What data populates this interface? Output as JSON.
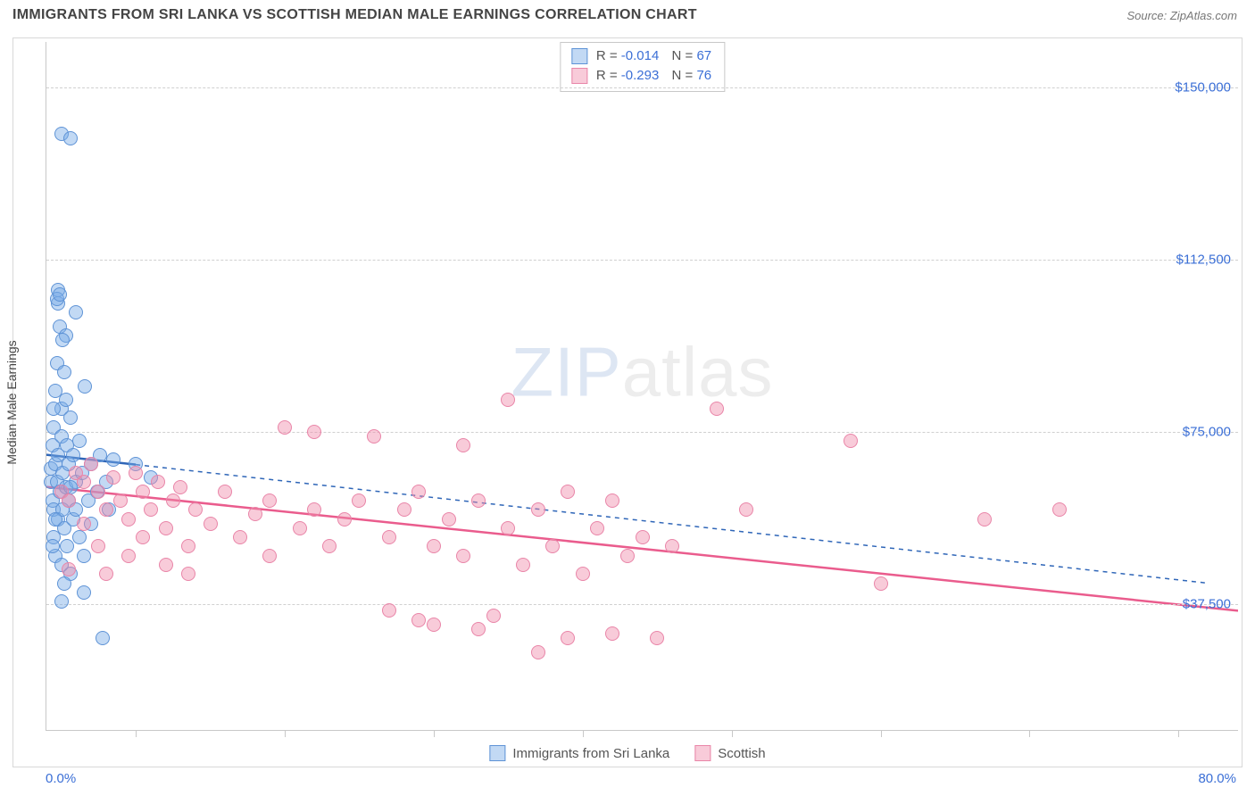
{
  "header": {
    "title": "IMMIGRANTS FROM SRI LANKA VS SCOTTISH MEDIAN MALE EARNINGS CORRELATION CHART",
    "source_prefix": "Source: ",
    "source_name": "ZipAtlas.com"
  },
  "chart": {
    "type": "scatter",
    "ylabel": "Median Male Earnings",
    "xlim": [
      0,
      80
    ],
    "ylim": [
      10000,
      160000
    ],
    "x_axis_start": "0.0%",
    "x_axis_end": "80.0%",
    "y_ticks": [
      {
        "v": 37500,
        "label": "$37,500"
      },
      {
        "v": 75000,
        "label": "$75,000"
      },
      {
        "v": 112500,
        "label": "$112,500"
      },
      {
        "v": 150000,
        "label": "$150,000"
      }
    ],
    "x_tick_positions": [
      6,
      16,
      26,
      36,
      46,
      56,
      66,
      76
    ],
    "grid_color": "#d0d0d0",
    "background_color": "#ffffff",
    "point_radius": 8,
    "watermark": {
      "part1": "ZIP",
      "part2": "atlas"
    },
    "series": [
      {
        "id": "sri_lanka",
        "label": "Immigrants from Sri Lanka",
        "fill": "rgba(120,170,230,0.45)",
        "stroke": "#5e93d6",
        "line_color": "#2f66b8",
        "line_dash": "5,5",
        "R": "-0.014",
        "N": "67",
        "trend": {
          "x1": 0,
          "y1": 70000,
          "x2": 78,
          "y2": 42000,
          "solid_until": 6
        },
        "points": [
          [
            0.3,
            67000
          ],
          [
            0.3,
            64000
          ],
          [
            0.4,
            72000
          ],
          [
            0.4,
            60000
          ],
          [
            0.5,
            58000
          ],
          [
            0.5,
            76000
          ],
          [
            0.5,
            52000
          ],
          [
            0.6,
            84000
          ],
          [
            0.6,
            68000
          ],
          [
            0.6,
            48000
          ],
          [
            0.7,
            90000
          ],
          [
            0.7,
            64000
          ],
          [
            0.8,
            56000
          ],
          [
            0.8,
            70000
          ],
          [
            0.8,
            106000
          ],
          [
            0.8,
            103000
          ],
          [
            0.9,
            62000
          ],
          [
            0.9,
            98000
          ],
          [
            1.0,
            74000
          ],
          [
            1.0,
            46000
          ],
          [
            1.0,
            80000
          ],
          [
            1.1,
            66000
          ],
          [
            1.1,
            58000
          ],
          [
            1.2,
            88000
          ],
          [
            1.2,
            54000
          ],
          [
            1.3,
            96000
          ],
          [
            1.3,
            63000
          ],
          [
            1.4,
            72000
          ],
          [
            1.4,
            50000
          ],
          [
            1.5,
            68000
          ],
          [
            1.5,
            60000
          ],
          [
            1.6,
            44000
          ],
          [
            1.6,
            78000
          ],
          [
            1.8,
            70000
          ],
          [
            1.8,
            56000
          ],
          [
            2.0,
            101000
          ],
          [
            2.0,
            64000
          ],
          [
            2.2,
            52000
          ],
          [
            2.2,
            73000
          ],
          [
            2.4,
            66000
          ],
          [
            2.5,
            40000
          ],
          [
            2.6,
            85000
          ],
          [
            2.8,
            60000
          ],
          [
            3.0,
            68000
          ],
          [
            3.0,
            55000
          ],
          [
            3.4,
            62000
          ],
          [
            3.6,
            70000
          ],
          [
            3.8,
            30000
          ],
          [
            4.0,
            64000
          ],
          [
            4.2,
            58000
          ],
          [
            4.5,
            69000
          ],
          [
            0.7,
            104000
          ],
          [
            0.9,
            105000
          ],
          [
            1.1,
            95000
          ],
          [
            1.3,
            82000
          ],
          [
            1.6,
            63000
          ],
          [
            2.0,
            58000
          ],
          [
            2.5,
            48000
          ],
          [
            0.5,
            80000
          ],
          [
            0.6,
            56000
          ],
          [
            0.4,
            50000
          ],
          [
            1.0,
            38000
          ],
          [
            1.2,
            42000
          ],
          [
            1.0,
            140000
          ],
          [
            1.6,
            139000
          ],
          [
            6.0,
            68000
          ],
          [
            7.0,
            65000
          ]
        ]
      },
      {
        "id": "scottish",
        "label": "Scottish",
        "fill": "rgba(240,140,170,0.45)",
        "stroke": "#e985a8",
        "line_color": "#ea5c8d",
        "line_dash": "",
        "R": "-0.293",
        "N": "76",
        "trend": {
          "x1": 0,
          "y1": 63000,
          "x2": 80,
          "y2": 36000,
          "solid_until": 80
        },
        "points": [
          [
            1.0,
            62000
          ],
          [
            1.5,
            60000
          ],
          [
            2.0,
            66000
          ],
          [
            2.5,
            64000
          ],
          [
            3.0,
            68000
          ],
          [
            3.5,
            62000
          ],
          [
            4.0,
            58000
          ],
          [
            4.5,
            65000
          ],
          [
            5.0,
            60000
          ],
          [
            5.5,
            56000
          ],
          [
            6.0,
            66000
          ],
          [
            6.5,
            62000
          ],
          [
            7.0,
            58000
          ],
          [
            7.5,
            64000
          ],
          [
            8.0,
            54000
          ],
          [
            8.5,
            60000
          ],
          [
            9.0,
            63000
          ],
          [
            9.5,
            50000
          ],
          [
            10.0,
            58000
          ],
          [
            11.0,
            55000
          ],
          [
            12.0,
            62000
          ],
          [
            13.0,
            52000
          ],
          [
            14.0,
            57000
          ],
          [
            15.0,
            60000
          ],
          [
            15.0,
            48000
          ],
          [
            16.0,
            76000
          ],
          [
            17.0,
            54000
          ],
          [
            18.0,
            58000
          ],
          [
            18.0,
            75000
          ],
          [
            19.0,
            50000
          ],
          [
            20.0,
            56000
          ],
          [
            21.0,
            60000
          ],
          [
            22.0,
            74000
          ],
          [
            23.0,
            52000
          ],
          [
            23.0,
            36000
          ],
          [
            24.0,
            58000
          ],
          [
            25.0,
            62000
          ],
          [
            25.0,
            34000
          ],
          [
            26.0,
            50000
          ],
          [
            26.0,
            33000
          ],
          [
            27.0,
            56000
          ],
          [
            28.0,
            48000
          ],
          [
            28.0,
            72000
          ],
          [
            29.0,
            60000
          ],
          [
            29.0,
            32000
          ],
          [
            30.0,
            35000
          ],
          [
            31.0,
            54000
          ],
          [
            31.0,
            82000
          ],
          [
            32.0,
            46000
          ],
          [
            33.0,
            58000
          ],
          [
            33.0,
            27000
          ],
          [
            34.0,
            50000
          ],
          [
            35.0,
            62000
          ],
          [
            35.0,
            30000
          ],
          [
            36.0,
            44000
          ],
          [
            37.0,
            54000
          ],
          [
            38.0,
            31000
          ],
          [
            38.0,
            60000
          ],
          [
            39.0,
            48000
          ],
          [
            40.0,
            52000
          ],
          [
            41.0,
            30000
          ],
          [
            42.0,
            50000
          ],
          [
            45.0,
            80000
          ],
          [
            47.0,
            58000
          ],
          [
            54.0,
            73000
          ],
          [
            56.0,
            42000
          ],
          [
            63.0,
            56000
          ],
          [
            68.0,
            58000
          ],
          [
            1.5,
            45000
          ],
          [
            2.5,
            55000
          ],
          [
            3.5,
            50000
          ],
          [
            4.0,
            44000
          ],
          [
            5.5,
            48000
          ],
          [
            6.5,
            52000
          ],
          [
            8.0,
            46000
          ],
          [
            9.5,
            44000
          ]
        ]
      }
    ]
  },
  "legend": {
    "series1_label": "Immigrants from Sri Lanka",
    "series2_label": "Scottish"
  }
}
